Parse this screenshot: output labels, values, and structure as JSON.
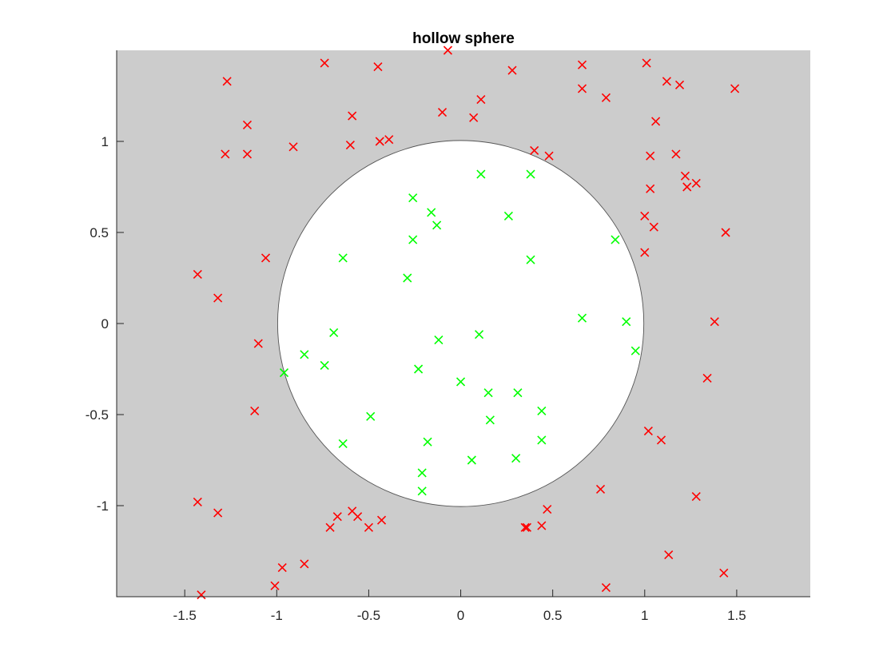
{
  "chart_data": {
    "type": "scatter",
    "title": "hollow sphere",
    "xlabel": "",
    "ylabel": "",
    "xlim": [
      -1.87,
      1.9
    ],
    "ylim": [
      -1.5,
      1.5
    ],
    "xticks": [
      -1.5,
      -1,
      -0.5,
      0,
      0.5,
      1,
      1.5
    ],
    "xtick_labels": [
      "-1.5",
      "-1",
      "-0.5",
      "0",
      "0.5",
      "1",
      "1.5"
    ],
    "yticks": [
      -1,
      -0.5,
      0,
      0.5,
      1
    ],
    "ytick_labels": [
      "-1",
      "-0.5",
      "0",
      "0.5",
      "1"
    ],
    "grid": false,
    "background_color": "#cccccc",
    "circle": {
      "center": [
        0,
        0
      ],
      "radius": 1,
      "fill": "#ffffff",
      "stroke": "#555555"
    },
    "series": [
      {
        "marker": "x",
        "color": "#ff0000",
        "points": [
          [
            -0.74,
            1.43
          ],
          [
            -0.07,
            1.5
          ],
          [
            -1.27,
            1.33
          ],
          [
            -0.45,
            1.41
          ],
          [
            0.66,
            1.42
          ],
          [
            1.01,
            1.43
          ],
          [
            0.28,
            1.39
          ],
          [
            1.12,
            1.33
          ],
          [
            1.19,
            1.31
          ],
          [
            1.49,
            1.29
          ],
          [
            0.66,
            1.29
          ],
          [
            0.79,
            1.24
          ],
          [
            0.11,
            1.23
          ],
          [
            -0.1,
            1.16
          ],
          [
            0.07,
            1.13
          ],
          [
            -0.59,
            1.14
          ],
          [
            -1.16,
            1.09
          ],
          [
            1.06,
            1.11
          ],
          [
            -0.44,
            1.0
          ],
          [
            -0.39,
            1.01
          ],
          [
            -0.91,
            0.97
          ],
          [
            -0.6,
            0.98
          ],
          [
            -1.28,
            0.93
          ],
          [
            -1.16,
            0.93
          ],
          [
            0.4,
            0.95
          ],
          [
            0.48,
            0.92
          ],
          [
            1.03,
            0.92
          ],
          [
            1.17,
            0.93
          ],
          [
            1.22,
            0.81
          ],
          [
            1.23,
            0.75
          ],
          [
            1.28,
            0.77
          ],
          [
            1.03,
            0.74
          ],
          [
            1.0,
            0.59
          ],
          [
            1.05,
            0.53
          ],
          [
            1.44,
            0.5
          ],
          [
            1.0,
            0.39
          ],
          [
            -1.06,
            0.36
          ],
          [
            -1.43,
            0.27
          ],
          [
            -1.32,
            0.14
          ],
          [
            1.38,
            0.01
          ],
          [
            -1.1,
            -0.11
          ],
          [
            1.34,
            -0.3
          ],
          [
            -1.12,
            -0.48
          ],
          [
            1.02,
            -0.59
          ],
          [
            1.09,
            -0.64
          ],
          [
            0.76,
            -0.91
          ],
          [
            1.28,
            -0.95
          ],
          [
            -1.43,
            -0.98
          ],
          [
            -1.32,
            -1.04
          ],
          [
            0.47,
            -1.02
          ],
          [
            -0.59,
            -1.03
          ],
          [
            -0.56,
            -1.06
          ],
          [
            -0.67,
            -1.06
          ],
          [
            -0.43,
            -1.08
          ],
          [
            -0.71,
            -1.12
          ],
          [
            -0.5,
            -1.12
          ],
          [
            0.35,
            -1.12
          ],
          [
            0.36,
            -1.12
          ],
          [
            0.44,
            -1.11
          ],
          [
            1.13,
            -1.27
          ],
          [
            -0.85,
            -1.32
          ],
          [
            -0.97,
            -1.34
          ],
          [
            1.43,
            -1.37
          ],
          [
            -1.01,
            -1.44
          ],
          [
            0.79,
            -1.45
          ],
          [
            -1.41,
            -1.49
          ]
        ]
      },
      {
        "marker": "x",
        "color": "#00ff00",
        "points": [
          [
            0.11,
            0.82
          ],
          [
            0.38,
            0.82
          ],
          [
            -0.26,
            0.69
          ],
          [
            -0.16,
            0.61
          ],
          [
            0.26,
            0.59
          ],
          [
            -0.13,
            0.54
          ],
          [
            -0.26,
            0.46
          ],
          [
            0.84,
            0.46
          ],
          [
            -0.64,
            0.36
          ],
          [
            0.38,
            0.35
          ],
          [
            -0.29,
            0.25
          ],
          [
            0.66,
            0.03
          ],
          [
            0.9,
            0.01
          ],
          [
            -0.69,
            -0.05
          ],
          [
            0.1,
            -0.06
          ],
          [
            -0.12,
            -0.09
          ],
          [
            0.95,
            -0.15
          ],
          [
            -0.85,
            -0.17
          ],
          [
            -0.74,
            -0.23
          ],
          [
            -0.23,
            -0.25
          ],
          [
            -0.96,
            -0.27
          ],
          [
            0.0,
            -0.32
          ],
          [
            0.15,
            -0.38
          ],
          [
            0.31,
            -0.38
          ],
          [
            0.44,
            -0.48
          ],
          [
            -0.49,
            -0.51
          ],
          [
            0.16,
            -0.53
          ],
          [
            0.44,
            -0.64
          ],
          [
            -0.18,
            -0.65
          ],
          [
            -0.64,
            -0.66
          ],
          [
            0.3,
            -0.74
          ],
          [
            0.06,
            -0.75
          ],
          [
            -0.21,
            -0.82
          ],
          [
            -0.21,
            -0.92
          ]
        ]
      }
    ]
  }
}
